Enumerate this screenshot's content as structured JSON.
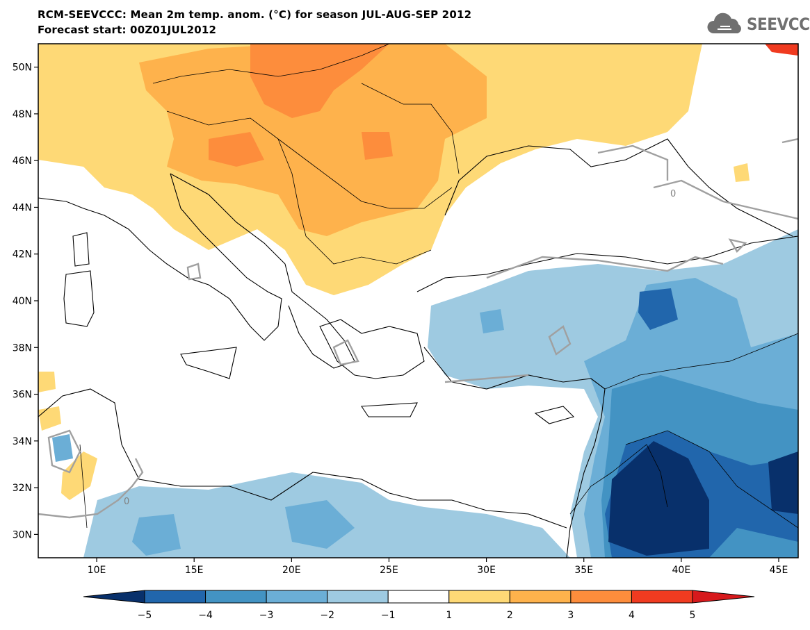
{
  "header": {
    "title_line1": "RCM-SEEVCCC: Mean 2m temp. anom. (°C) for season JUL-AUG-SEP 2012",
    "title_line2": "Forecast start: 00Z01JUL2012",
    "logo_text": "SEEVCCC",
    "logo_icon": "cloud-icon"
  },
  "map": {
    "lon_range": [
      7,
      46
    ],
    "lat_range": [
      29,
      51
    ],
    "lat_ticks": [
      "50N",
      "48N",
      "46N",
      "44N",
      "42N",
      "40N",
      "38N",
      "36N",
      "34N",
      "32N",
      "30N"
    ],
    "lon_ticks": [
      "10E",
      "15E",
      "20E",
      "25E",
      "30E",
      "35E",
      "40E",
      "45E"
    ],
    "contour_label": "0"
  },
  "colorbar": {
    "labels": [
      "−5",
      "−4",
      "−3",
      "−2",
      "−1",
      "1",
      "2",
      "3",
      "4",
      "5"
    ],
    "colors": [
      "#08306b",
      "#2166ac",
      "#4393c3",
      "#6baed6",
      "#9ecae1",
      "#ffffff",
      "#fed976",
      "#feb24c",
      "#fd8d3c",
      "#f03b20",
      "#d7191c"
    ]
  }
}
